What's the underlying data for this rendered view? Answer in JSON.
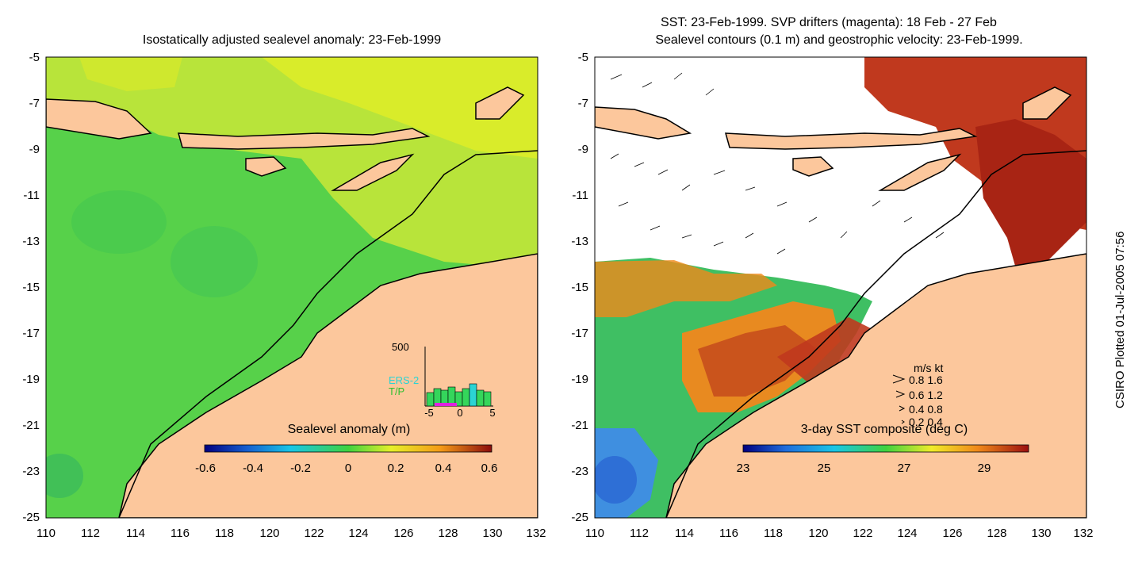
{
  "left_panel": {
    "title": "Isostatically adjusted sealevel anomaly: 23-Feb-1999",
    "colorbar_label": "Sealevel anomaly (m)",
    "colorbar_ticks": [
      "-0.6",
      "-0.4",
      "-0.2",
      "0",
      "0.2",
      "0.4",
      "0.6"
    ],
    "inset": {
      "ymax_label": "500",
      "series": [
        "ERS-2",
        "T/P"
      ],
      "x_ticks": [
        "-5",
        "0",
        "5"
      ]
    }
  },
  "right_panel": {
    "title_line1": "SST: 23-Feb-1999. SVP drifters (magenta): 18 Feb - 27 Feb",
    "title_line2": "Sealevel contours (0.1 m) and geostrophic velocity: 23-Feb-1999.",
    "colorbar_label": "3-day SST composite (deg C)",
    "colorbar_ticks": [
      "23",
      "25",
      "27",
      "29"
    ],
    "legend": {
      "header": "m/s  kt",
      "rows": [
        "0.8  1.6",
        "0.6  1.2",
        "0.4  0.8",
        "0.2  0.4"
      ]
    }
  },
  "axes": {
    "y_ticks": [
      "-5",
      "-7",
      "-9",
      "-11",
      "-13",
      "-15",
      "-17",
      "-19",
      "-21",
      "-23",
      "-25"
    ],
    "x_ticks": [
      "110",
      "112",
      "114",
      "116",
      "118",
      "120",
      "122",
      "124",
      "126",
      "128",
      "130",
      "132"
    ],
    "lat_range": [
      -25,
      -5
    ],
    "lon_range": [
      110,
      132
    ]
  },
  "side_label": "CSIRO Plotted 01-Jul-2005 07:56",
  "colors": {
    "land": "#fcc79c",
    "sla_ocean": "#4fd74a",
    "sla_high": "#d8ee2c",
    "sst_warm": "#c0391e",
    "sst_mid": "#e87a20",
    "sst_cool": "#3fa8e0"
  }
}
